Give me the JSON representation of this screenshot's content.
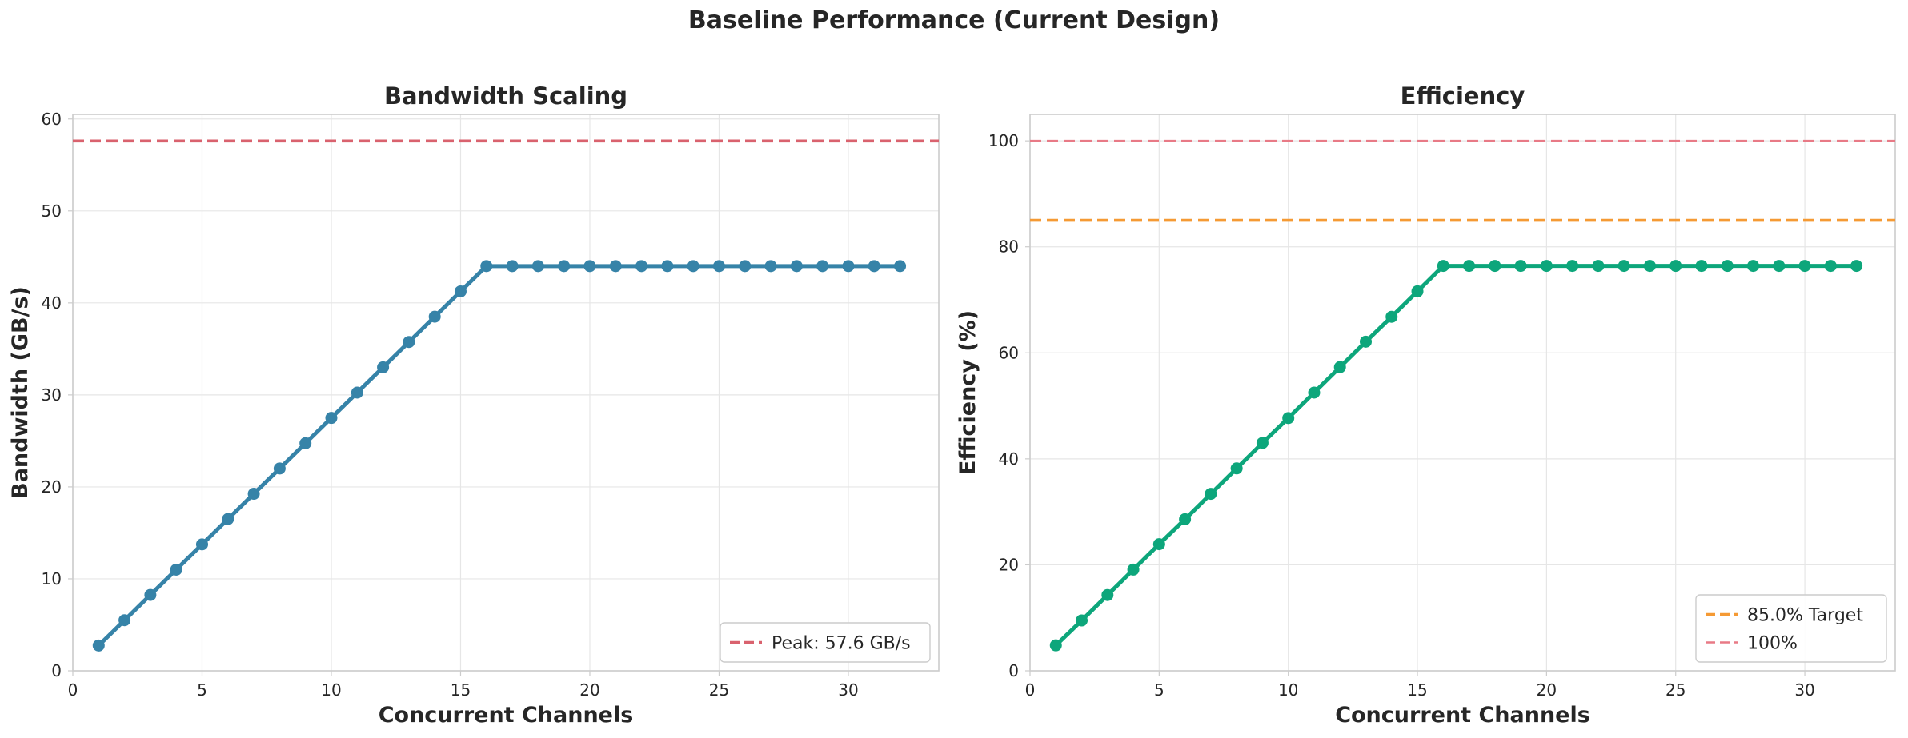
{
  "figure_title": "Baseline Performance (Current Design)",
  "colors": {
    "bandwidth_series": "#3683a8",
    "efficiency_series": "#0da67b",
    "peak_line": "#d9626e",
    "target_line": "#f59a34",
    "hundred_line": "#e87a86"
  },
  "chart_data": [
    {
      "type": "line",
      "title": "Bandwidth Scaling",
      "xlabel": "Concurrent Channels",
      "ylabel": "Bandwidth (GB/s)",
      "xlim": [
        0,
        33.5
      ],
      "ylim": [
        0,
        60.5
      ],
      "xticks": [
        0,
        5,
        10,
        15,
        20,
        25,
        30
      ],
      "yticks": [
        0,
        10,
        20,
        30,
        40,
        50,
        60
      ],
      "grid": true,
      "legend_position": "lower-right",
      "series": [
        {
          "x": [
            1,
            2,
            3,
            4,
            5,
            6,
            7,
            8,
            9,
            10,
            11,
            12,
            13,
            14,
            15,
            16,
            17,
            18,
            19,
            20,
            21,
            22,
            23,
            24,
            25,
            26,
            27,
            28,
            29,
            30,
            31,
            32
          ],
          "values": [
            2.75,
            5.5,
            8.25,
            11.0,
            13.75,
            16.5,
            19.25,
            22.0,
            24.75,
            27.5,
            30.25,
            33.0,
            35.75,
            38.5,
            41.25,
            44.0,
            44.0,
            44.0,
            44.0,
            44.0,
            44.0,
            44.0,
            44.0,
            44.0,
            44.0,
            44.0,
            44.0,
            44.0,
            44.0,
            44.0,
            44.0,
            44.0
          ],
          "color_key": "bandwidth_series",
          "marker": "circle"
        }
      ],
      "reference_lines": [
        {
          "name": "Peak: 57.6 GB/s",
          "y": 57.6,
          "style": "dashed",
          "color_key": "peak_line",
          "in_legend": true
        }
      ]
    },
    {
      "type": "line",
      "title": "Efficiency",
      "xlabel": "Concurrent Channels",
      "ylabel": "Efficiency (%)",
      "xlim": [
        0,
        33.5
      ],
      "ylim": [
        0,
        105
      ],
      "xticks": [
        0,
        5,
        10,
        15,
        20,
        25,
        30
      ],
      "yticks": [
        0,
        20,
        40,
        60,
        80,
        100
      ],
      "grid": true,
      "legend_position": "lower-right",
      "series": [
        {
          "x": [
            1,
            2,
            3,
            4,
            5,
            6,
            7,
            8,
            9,
            10,
            11,
            12,
            13,
            14,
            15,
            16,
            17,
            18,
            19,
            20,
            21,
            22,
            23,
            24,
            25,
            26,
            27,
            28,
            29,
            30,
            31,
            32
          ],
          "values": [
            4.8,
            9.5,
            14.3,
            19.1,
            23.9,
            28.6,
            33.4,
            38.2,
            43.0,
            47.7,
            52.5,
            57.3,
            62.1,
            66.8,
            71.6,
            76.4,
            76.4,
            76.4,
            76.4,
            76.4,
            76.4,
            76.4,
            76.4,
            76.4,
            76.4,
            76.4,
            76.4,
            76.4,
            76.4,
            76.4,
            76.4,
            76.4
          ],
          "color_key": "efficiency_series",
          "marker": "circle"
        }
      ],
      "reference_lines": [
        {
          "name": "85.0% Target",
          "y": 85,
          "style": "dashed",
          "color_key": "target_line",
          "in_legend": true
        },
        {
          "name": "100%",
          "y": 100,
          "style": "dashed",
          "color_key": "hundred_line",
          "in_legend": true
        }
      ]
    }
  ]
}
